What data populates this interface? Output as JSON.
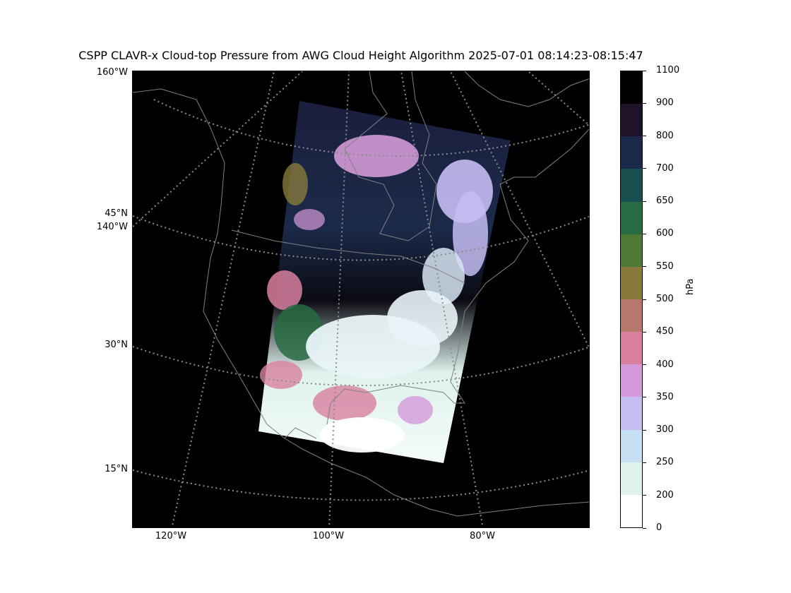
{
  "title": "CSPP CLAVR-x Cloud-top Pressure from AWG Cloud Height Algorithm 2025-07-01 08:14:23-08:15:47",
  "map": {
    "background": "#000000",
    "gridline_color": "#8c8c8c",
    "coastline_color": "#808080",
    "lat_labels": [
      "15°N",
      "30°N",
      "45°N"
    ],
    "lon_labels_left": [
      "160°W",
      "140°W"
    ],
    "lon_labels_bottom": [
      "120°W",
      "100°W",
      "80°W"
    ]
  },
  "colorbar": {
    "units": "hPa",
    "ticks": [
      "0",
      "200",
      "250",
      "300",
      "350",
      "400",
      "450",
      "500",
      "550",
      "600",
      "650",
      "700",
      "800",
      "900",
      "1100"
    ],
    "colors": [
      "#ffffff",
      "#dff2ee",
      "#c7dff3",
      "#c6bdf2",
      "#d59ad9",
      "#d87fa0",
      "#b5786a",
      "#877a3b",
      "#4f7a35",
      "#276b42",
      "#174f4e",
      "#1b2a4a",
      "#1e1329",
      "#000000"
    ]
  }
}
